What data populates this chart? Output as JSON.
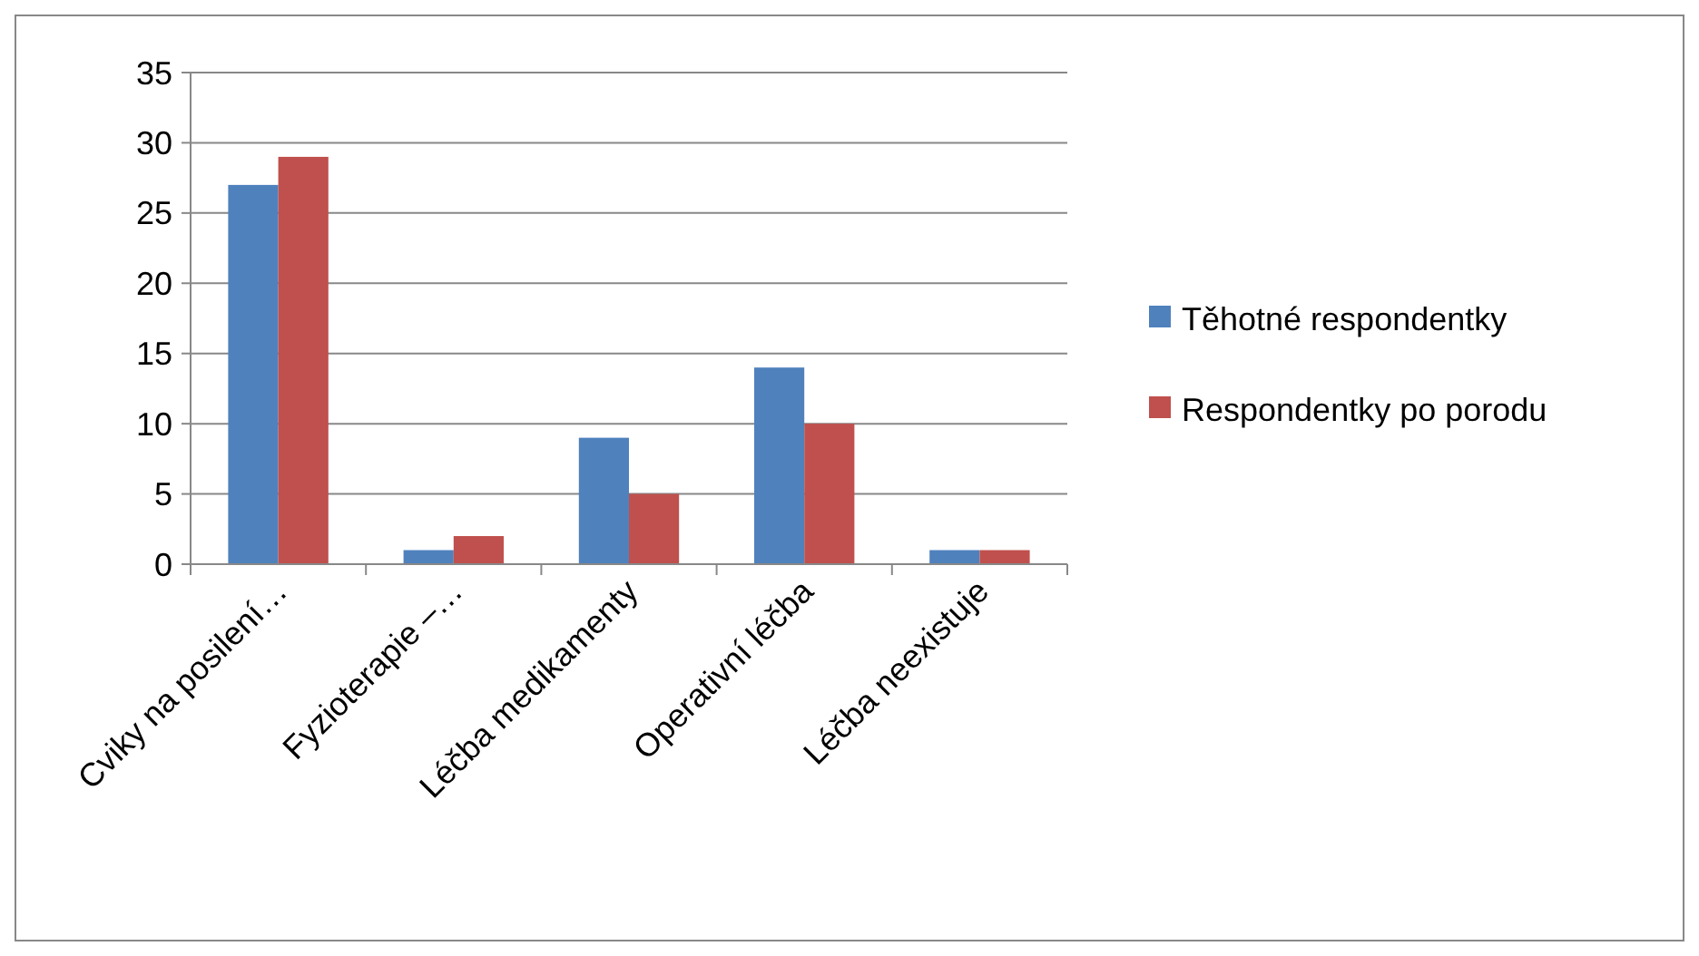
{
  "chart_data": {
    "type": "bar",
    "categories": [
      "Cviky na posilení…",
      "Fyzioterapie –…",
      "Léčba medikamenty",
      "Operativní léčba",
      "Léčba neexistuje"
    ],
    "series": [
      {
        "name": "Těhotné respondentky",
        "color": "#4f81bd",
        "values": [
          27,
          1,
          9,
          14,
          1
        ]
      },
      {
        "name": "Respondentky po porodu",
        "color": "#c0504d",
        "values": [
          29,
          2,
          5,
          10,
          1
        ]
      }
    ],
    "ylim": [
      0,
      35
    ],
    "yticks": [
      0,
      5,
      10,
      15,
      20,
      25,
      30,
      35
    ],
    "grid": "y",
    "legend": "right"
  }
}
